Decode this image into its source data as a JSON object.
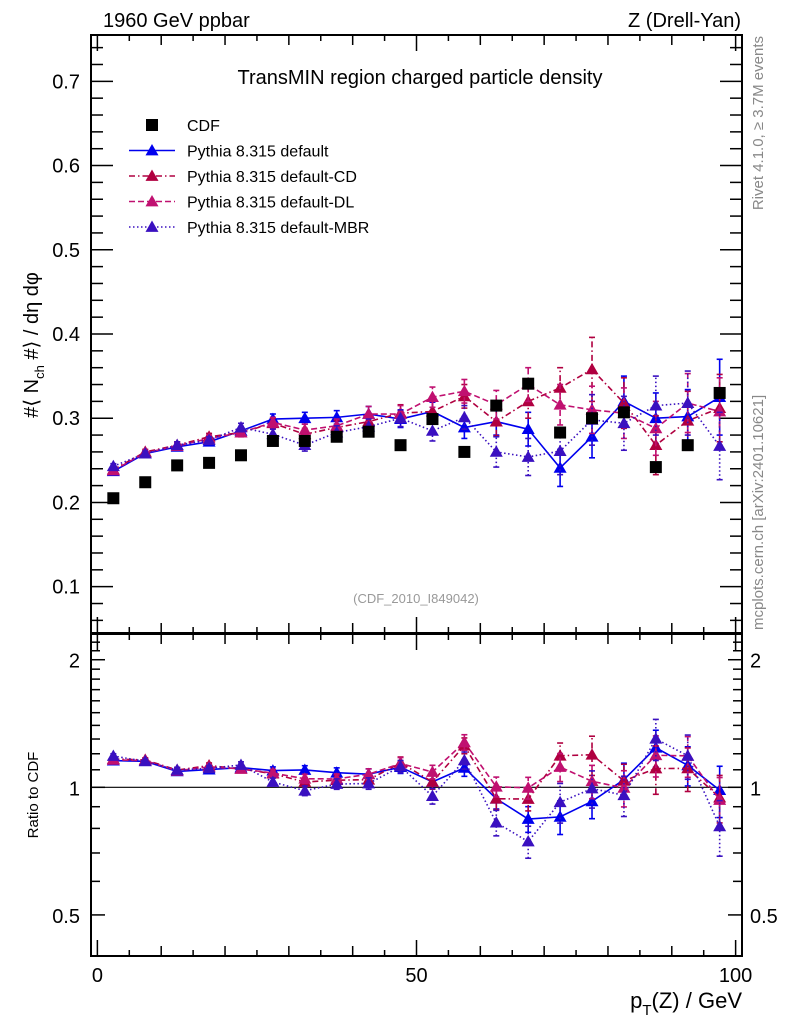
{
  "header": {
    "left": "1960 GeV ppbar",
    "right": "Z (Drell-Yan)"
  },
  "side_labels": {
    "rivet": "Rivet 4.1.0, ≥ 3.7M events",
    "mcplots": "mcplots.cern.ch [arXiv:2401.10621]"
  },
  "chart_data": {
    "type": "scatter",
    "title": "TransMIN region charged particle density",
    "analysis_id": "(CDF_2010_I849042)",
    "xlabel": "p_T(Z) / GeV",
    "ylabel": "#⟨ N_ch #⟩ / dη dφ",
    "ratio_ylabel": "Ratio to CDF",
    "xlim": [
      -1,
      101
    ],
    "ylim": [
      0.045,
      0.755
    ],
    "ratio_ylim": [
      0.4,
      2.3
    ],
    "ratio_scale": "log",
    "x_ticks": [
      0,
      50,
      100
    ],
    "x_tick_labels": [
      "0",
      "50",
      "100"
    ],
    "y_ticks": [
      0.1,
      0.2,
      0.3,
      0.4,
      0.5,
      0.6,
      0.7
    ],
    "y_tick_labels": [
      "0.1",
      "0.2",
      "0.3",
      "0.4",
      "0.5",
      "0.6",
      "0.7"
    ],
    "ratio_y_ticks": [
      0.5,
      1,
      2
    ],
    "ratio_y_tick_labels": [
      "0.5",
      "1",
      "2"
    ],
    "legend_position": "top-left",
    "x": [
      2.5,
      7.5,
      12.5,
      17.5,
      22.5,
      27.5,
      32.5,
      37.5,
      42.5,
      47.5,
      52.5,
      57.5,
      62.5,
      67.5,
      72.5,
      77.5,
      82.5,
      87.5,
      92.5,
      97.5
    ],
    "data": {
      "name": "CDF",
      "color": "#000000",
      "values": [
        0.205,
        0.224,
        0.244,
        0.247,
        0.256,
        0.273,
        0.273,
        0.278,
        0.284,
        0.268,
        0.299,
        0.26,
        0.315,
        0.341,
        0.283,
        0.3,
        0.307,
        0.242,
        0.268,
        0.33
      ]
    },
    "series": [
      {
        "name": "Pythia 8.315 default",
        "color": "#0000ee",
        "dash": "solid",
        "values": [
          0.237,
          0.258,
          0.266,
          0.272,
          0.285,
          0.299,
          0.3,
          0.301,
          0.305,
          0.299,
          0.308,
          0.289,
          0.296,
          0.287,
          0.241,
          0.278,
          0.32,
          0.3,
          0.302,
          0.325
        ],
        "errors": [
          0.003,
          0.003,
          0.004,
          0.004,
          0.005,
          0.006,
          0.007,
          0.008,
          0.009,
          0.01,
          0.011,
          0.013,
          0.016,
          0.02,
          0.022,
          0.025,
          0.03,
          0.03,
          0.032,
          0.045
        ]
      },
      {
        "name": "Pythia 8.315 default-CD",
        "color": "#b00040",
        "dash": "dashdot",
        "values": [
          0.239,
          0.26,
          0.268,
          0.278,
          0.283,
          0.294,
          0.281,
          0.289,
          0.296,
          0.306,
          0.308,
          0.326,
          0.296,
          0.32,
          0.336,
          0.358,
          0.318,
          0.268,
          0.297,
          0.312
        ],
        "errors": [
          0.003,
          0.003,
          0.004,
          0.004,
          0.005,
          0.006,
          0.007,
          0.008,
          0.009,
          0.01,
          0.012,
          0.014,
          0.017,
          0.02,
          0.024,
          0.038,
          0.03,
          0.035,
          0.035,
          0.04
        ]
      },
      {
        "name": "Pythia 8.315 default-DL",
        "color": "#c01070",
        "dash": "dashed",
        "values": [
          0.238,
          0.259,
          0.267,
          0.276,
          0.283,
          0.295,
          0.286,
          0.291,
          0.305,
          0.305,
          0.325,
          0.332,
          0.316,
          0.34,
          0.316,
          0.31,
          0.306,
          0.288,
          0.318,
          0.308
        ],
        "errors": [
          0.003,
          0.003,
          0.004,
          0.004,
          0.005,
          0.006,
          0.007,
          0.008,
          0.009,
          0.01,
          0.012,
          0.014,
          0.017,
          0.02,
          0.024,
          0.028,
          0.03,
          0.032,
          0.035,
          0.04
        ]
      },
      {
        "name": "Pythia 8.315 default-MBR",
        "color": "#3a10c0",
        "dash": "dotted",
        "values": [
          0.243,
          0.258,
          0.268,
          0.274,
          0.289,
          0.281,
          0.268,
          0.283,
          0.29,
          0.3,
          0.285,
          0.301,
          0.26,
          0.254,
          0.261,
          0.298,
          0.294,
          0.315,
          0.318,
          0.267
        ],
        "errors": [
          0.003,
          0.003,
          0.004,
          0.004,
          0.005,
          0.006,
          0.007,
          0.008,
          0.009,
          0.01,
          0.012,
          0.014,
          0.018,
          0.022,
          0.028,
          0.03,
          0.032,
          0.035,
          0.038,
          0.04
        ]
      }
    ]
  }
}
